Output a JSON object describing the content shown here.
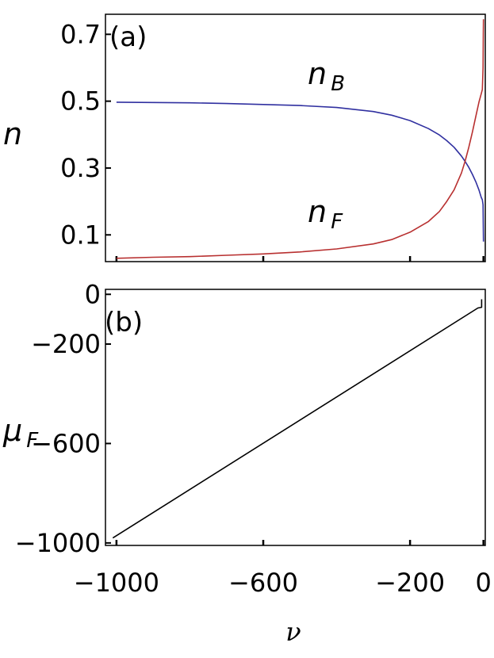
{
  "chart_data": [
    {
      "type": "line",
      "panel_label": "(a)",
      "ylabel": "n",
      "xlim": [
        -1030,
        5
      ],
      "ylim": [
        0.02,
        0.76
      ],
      "x_ticks": [
        -1000,
        -600,
        -200,
        0
      ],
      "y_ticks": [
        0.1,
        0.3,
        0.5,
        0.7
      ],
      "y_tick_labels": [
        "0.1",
        "0.3",
        "0.5",
        "0.7"
      ],
      "grid": false,
      "series": [
        {
          "name": "n_B",
          "label_main": "n",
          "label_sub": "B",
          "color": "#3030a0",
          "x": [
            -1000,
            -900,
            -800,
            -700,
            -600,
            -500,
            -400,
            -300,
            -250,
            -200,
            -150,
            -120,
            -100,
            -80,
            -60,
            -50,
            -40,
            -30,
            -20,
            -12,
            -6,
            -3,
            -1,
            -0.3,
            0
          ],
          "y": [
            0.497,
            0.496,
            0.495,
            0.493,
            0.49,
            0.487,
            0.481,
            0.469,
            0.458,
            0.442,
            0.418,
            0.399,
            0.382,
            0.362,
            0.336,
            0.32,
            0.302,
            0.281,
            0.257,
            0.234,
            0.212,
            0.205,
            0.19,
            0.12,
            0.08
          ]
        },
        {
          "name": "n_F",
          "label_main": "n",
          "label_sub": "F",
          "color": "#b83030",
          "x": [
            -1000,
            -900,
            -800,
            -700,
            -600,
            -500,
            -400,
            -300,
            -250,
            -200,
            -150,
            -120,
            -100,
            -80,
            -60,
            -50,
            -40,
            -30,
            -20,
            -12,
            -6,
            -3,
            -1,
            -0.3,
            0
          ],
          "y": [
            0.03,
            0.033,
            0.035,
            0.039,
            0.043,
            0.049,
            0.058,
            0.073,
            0.086,
            0.108,
            0.14,
            0.17,
            0.2,
            0.235,
            0.285,
            0.32,
            0.362,
            0.408,
            0.458,
            0.498,
            0.522,
            0.535,
            0.6,
            0.7,
            0.745
          ]
        }
      ]
    },
    {
      "type": "line",
      "panel_label": "(b)",
      "ylabel_main": "μ",
      "ylabel_sub": "F",
      "xlabel": "ν",
      "xlim": [
        -1030,
        5
      ],
      "ylim": [
        -1010,
        20
      ],
      "x_ticks": [
        -1000,
        -600,
        -200,
        0
      ],
      "x_tick_labels": [
        "−1000",
        "−600",
        "−200",
        "0"
      ],
      "y_ticks": [
        -1000,
        -600,
        -200,
        0
      ],
      "y_tick_labels": [
        "−1000",
        "−600",
        "−200",
        "0"
      ],
      "grid": false,
      "series": [
        {
          "name": "μ_F",
          "color": "#000000",
          "x": [
            -1010,
            -15,
            -5,
            -5
          ],
          "y": [
            -980,
            -55,
            -52,
            -20
          ]
        }
      ]
    }
  ]
}
